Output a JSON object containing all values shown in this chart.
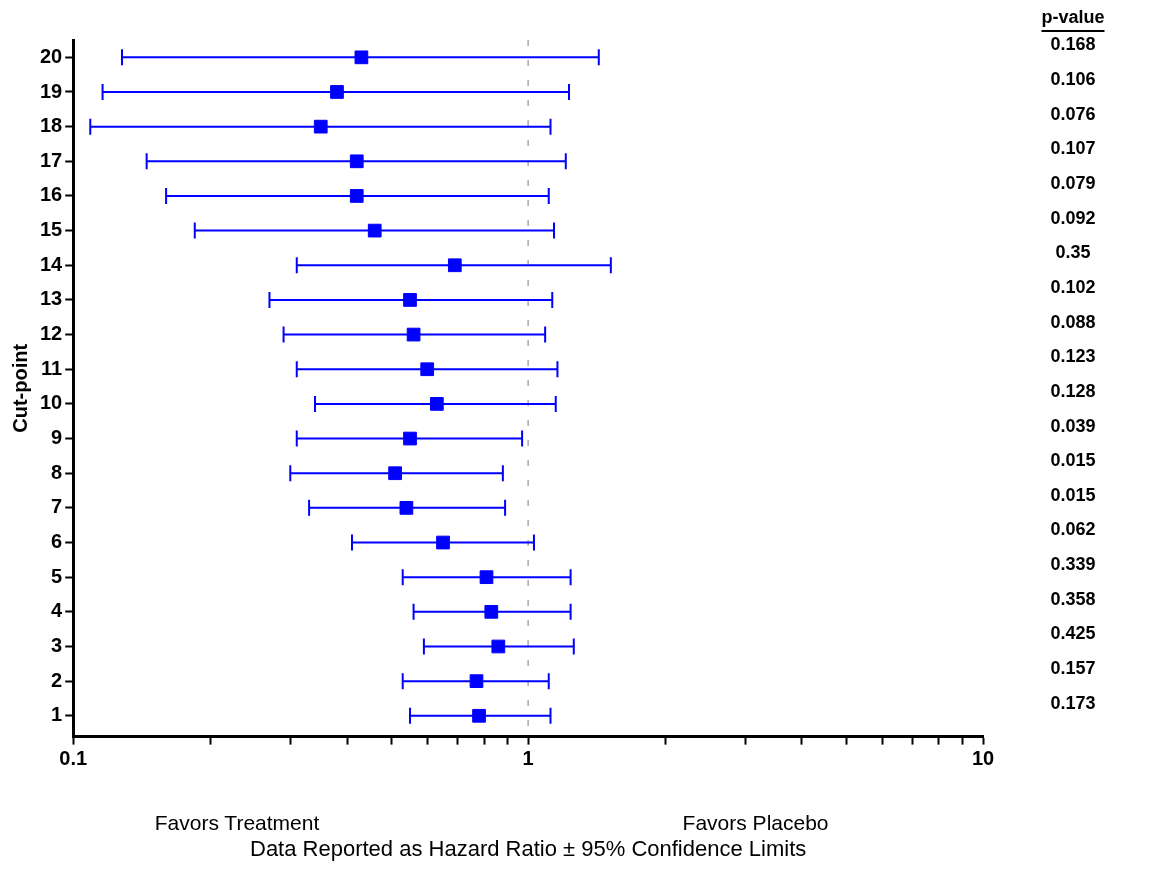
{
  "chart_data": {
    "type": "scatter",
    "orientation": "horizontal",
    "log": "x",
    "marker": "square",
    "grid": false,
    "legend": false,
    "xlabel": "Data Reported as Hazard Ratio ± 95% Confidence Limits",
    "ylabel": "Cut-point",
    "categories": [
      "20",
      "19",
      "18",
      "17",
      "16",
      "15",
      "14",
      "13",
      "12",
      "11",
      "10",
      "9",
      "8",
      "7",
      "6",
      "5",
      "4",
      "3",
      "2",
      "1"
    ],
    "xlim": [
      0.1,
      10
    ],
    "xticks": [
      0.1,
      {
        "value": 0.2,
        "label": null
      },
      {
        "value": 0.3,
        "label": null
      },
      {
        "value": 0.4,
        "label": null
      },
      {
        "value": 0.5,
        "label": null
      },
      {
        "value": 0.6,
        "label": null
      },
      {
        "value": 0.7,
        "label": null
      },
      {
        "value": 0.8,
        "label": null
      },
      {
        "value": 0.9,
        "label": null
      },
      1,
      {
        "value": 2,
        "label": null
      },
      {
        "value": 3,
        "label": null
      },
      {
        "value": 4,
        "label": null
      },
      {
        "value": 5,
        "label": null
      },
      {
        "value": 6,
        "label": null
      },
      {
        "value": 7,
        "label": null
      },
      {
        "value": 8,
        "label": null
      },
      {
        "value": 9,
        "label": null
      },
      10
    ],
    "series": [
      {
        "color": "#0000ff",
        "values": [
          0.43,
          0.38,
          0.35,
          0.42,
          0.42,
          0.46,
          0.69,
          0.55,
          0.56,
          0.6,
          0.63,
          0.55,
          0.51,
          0.54,
          0.65,
          0.81,
          0.83,
          0.86,
          0.77,
          0.78
        ],
        "errors": [
          [
            0.128,
            1.43
          ],
          [
            0.116,
            1.23
          ],
          [
            0.109,
            1.12
          ],
          [
            0.145,
            1.21
          ],
          [
            0.16,
            1.11
          ],
          [
            0.185,
            1.14
          ],
          [
            0.31,
            1.52
          ],
          [
            0.27,
            1.13
          ],
          [
            0.29,
            1.09
          ],
          [
            0.31,
            1.16
          ],
          [
            0.34,
            1.15
          ],
          [
            0.31,
            0.97
          ],
          [
            0.3,
            0.88
          ],
          [
            0.33,
            0.89
          ],
          [
            0.41,
            1.03
          ],
          [
            0.53,
            1.24
          ],
          [
            0.56,
            1.24
          ],
          [
            0.59,
            1.26
          ],
          [
            0.53,
            1.11
          ],
          [
            0.55,
            1.12
          ]
        ]
      }
    ],
    "ref_lines": [
      {
        "axis": "x",
        "value": 1,
        "color": "#aaaaaa",
        "line_style": "dashed"
      }
    ],
    "annotations": [
      "p-value",
      "Favors Treatment",
      "Favors Placebo",
      "0.168",
      "0.106",
      "0.076",
      "0.107",
      "0.079",
      "0.092",
      "0.35",
      "0.102",
      "0.088",
      "0.123",
      "0.128",
      "0.039",
      "0.015",
      "0.015",
      "0.062",
      "0.339",
      "0.358",
      "0.425",
      "0.157",
      "0.173"
    ]
  }
}
